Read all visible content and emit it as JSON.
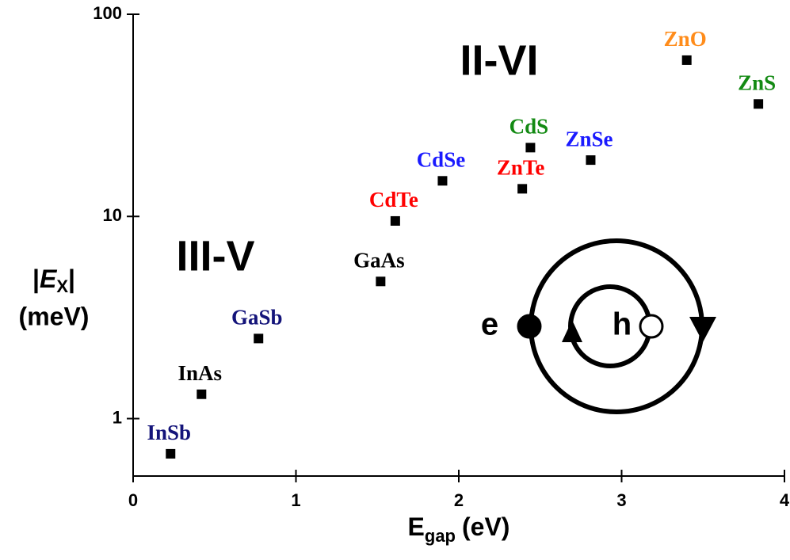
{
  "chart_data": {
    "type": "scatter",
    "x": [
      0.23,
      0.42,
      0.77,
      1.52,
      1.61,
      1.9,
      2.39,
      2.44,
      2.81,
      3.4,
      3.84
    ],
    "values": [
      0.67,
      1.32,
      2.49,
      4.77,
      9.5,
      15.0,
      13.7,
      21.9,
      19.0,
      59.3,
      36.0
    ],
    "labels": [
      "InSb",
      "InAs",
      "GaSb",
      "GaAs",
      "CdTe",
      "CdSe",
      "ZnTe",
      "CdS",
      "ZnSe",
      "ZnO",
      "ZnS"
    ],
    "label_colors": [
      "#14147a",
      "#000000",
      "#14147a",
      "#000000",
      "#ff0000",
      "#1a1aff",
      "#ff0000",
      "#138a13",
      "#1a1aff",
      "#ff8c1a",
      "#138a13"
    ],
    "color": "#000000",
    "xlim": [
      0,
      4
    ],
    "xticks": [
      0,
      1,
      2,
      3,
      4
    ],
    "ylim": [
      0.52,
      100
    ],
    "yticks": [
      1,
      10,
      100
    ],
    "log_y": true,
    "xlabel": [
      "E",
      "gap",
      "(eV)"
    ],
    "ylabel": [
      "|",
      "E",
      "X",
      "|",
      "(meV)"
    ],
    "annotations": [
      "II-VI",
      "III-V",
      "e",
      "h"
    ]
  }
}
